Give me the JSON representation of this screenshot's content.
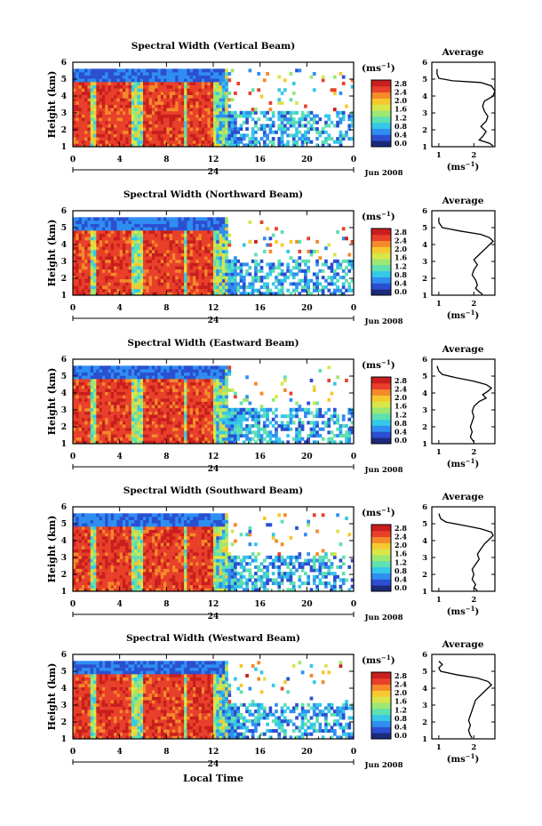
{
  "panels": [
    {
      "title": "Spectral Width (Vertical Beam)",
      "profile": [
        [
          5.6,
          0.95
        ],
        [
          5.3,
          0.95
        ],
        [
          5.05,
          1.0
        ],
        [
          4.9,
          1.4
        ],
        [
          4.8,
          2.2
        ],
        [
          4.6,
          2.5
        ],
        [
          4.3,
          2.6
        ],
        [
          4.0,
          2.55
        ],
        [
          3.7,
          2.3
        ],
        [
          3.4,
          2.25
        ],
        [
          3.1,
          2.3
        ],
        [
          2.8,
          2.4
        ],
        [
          2.5,
          2.35
        ],
        [
          2.2,
          2.2
        ],
        [
          1.9,
          2.35
        ],
        [
          1.6,
          2.25
        ],
        [
          1.4,
          2.15
        ],
        [
          1.2,
          2.45
        ],
        [
          1.05,
          2.55
        ]
      ]
    },
    {
      "title": "Spectral Width (Northward Beam)",
      "profile": [
        [
          5.6,
          1.0
        ],
        [
          5.3,
          1.0
        ],
        [
          5.0,
          1.1
        ],
        [
          4.8,
          1.6
        ],
        [
          4.6,
          2.2
        ],
        [
          4.4,
          2.45
        ],
        [
          4.2,
          2.55
        ],
        [
          4.0,
          2.45
        ],
        [
          3.7,
          2.3
        ],
        [
          3.4,
          2.15
        ],
        [
          3.1,
          2.0
        ],
        [
          2.8,
          2.1
        ],
        [
          2.5,
          2.0
        ],
        [
          2.2,
          1.95
        ],
        [
          1.9,
          2.05
        ],
        [
          1.6,
          2.1
        ],
        [
          1.4,
          2.05
        ],
        [
          1.2,
          2.15
        ],
        [
          1.05,
          2.25
        ]
      ]
    },
    {
      "title": "Spectral Width (Eastward Beam)",
      "profile": [
        [
          5.6,
          0.95
        ],
        [
          5.3,
          1.0
        ],
        [
          5.1,
          1.1
        ],
        [
          4.9,
          1.5
        ],
        [
          4.7,
          2.0
        ],
        [
          4.5,
          2.35
        ],
        [
          4.3,
          2.5
        ],
        [
          4.1,
          2.4
        ],
        [
          3.9,
          2.25
        ],
        [
          3.7,
          2.35
        ],
        [
          3.5,
          2.15
        ],
        [
          3.2,
          2.0
        ],
        [
          2.9,
          1.95
        ],
        [
          2.6,
          2.0
        ],
        [
          2.3,
          1.95
        ],
        [
          2.0,
          1.9
        ],
        [
          1.7,
          1.95
        ],
        [
          1.4,
          1.9
        ],
        [
          1.1,
          2.0
        ]
      ]
    },
    {
      "title": "Spectral Width (Southward Beam)",
      "profile": [
        [
          5.6,
          1.0
        ],
        [
          5.3,
          1.05
        ],
        [
          5.1,
          1.2
        ],
        [
          4.9,
          1.7
        ],
        [
          4.7,
          2.2
        ],
        [
          4.5,
          2.5
        ],
        [
          4.3,
          2.55
        ],
        [
          4.1,
          2.45
        ],
        [
          3.8,
          2.3
        ],
        [
          3.5,
          2.2
        ],
        [
          3.2,
          2.1
        ],
        [
          2.9,
          2.15
        ],
        [
          2.6,
          2.05
        ],
        [
          2.3,
          1.95
        ],
        [
          2.0,
          2.0
        ],
        [
          1.7,
          1.95
        ],
        [
          1.4,
          2.05
        ],
        [
          1.2,
          2.0
        ],
        [
          1.05,
          2.1
        ]
      ]
    },
    {
      "title": "Spectral Width (Westward Beam)",
      "profile": [
        [
          5.6,
          1.0
        ],
        [
          5.4,
          1.1
        ],
        [
          5.2,
          1.0
        ],
        [
          5.0,
          1.05
        ],
        [
          4.8,
          1.5
        ],
        [
          4.6,
          2.1
        ],
        [
          4.4,
          2.4
        ],
        [
          4.2,
          2.5
        ],
        [
          3.9,
          2.35
        ],
        [
          3.6,
          2.2
        ],
        [
          3.3,
          2.05
        ],
        [
          3.0,
          2.0
        ],
        [
          2.7,
          1.95
        ],
        [
          2.4,
          1.9
        ],
        [
          2.1,
          1.85
        ],
        [
          1.8,
          1.9
        ],
        [
          1.5,
          1.85
        ],
        [
          1.2,
          1.9
        ],
        [
          1.05,
          1.95
        ]
      ]
    }
  ],
  "ylabel": "Height (km)",
  "xlabel": "Local Time",
  "unit_label": "(ms",
  "unit_exp": "−1",
  "date_label": "Jun 2008",
  "day_label": "24",
  "avg_title": "Average",
  "colorbar_ticks": [
    "2.8",
    "2.4",
    "2.0",
    "1.6",
    "1.2",
    "0.8",
    "0.4",
    "0.0"
  ],
  "colorbar_colors": [
    "#1c2a7a",
    "#2b4fd0",
    "#2f8ef0",
    "#35c8e8",
    "#5fe0b0",
    "#9ce873",
    "#d8e64a",
    "#f6c830",
    "#f48a2a",
    "#e8402a",
    "#c81e1e"
  ],
  "chart_data": [
    {
      "type": "heatmap",
      "title": "Spectral Width (Vertical Beam)",
      "xlabel": "",
      "ylabel": "Height (km)",
      "x_ticks": [
        "0",
        "4",
        "8",
        "12",
        "16",
        "20",
        "0"
      ],
      "y_ticks": [
        "1",
        "2",
        "3",
        "4",
        "5",
        "6"
      ],
      "xlim": [
        0,
        24
      ],
      "ylim": [
        1,
        6
      ],
      "colorbar": {
        "label": "(ms−1)",
        "ticks": [
          "0.0",
          "0.4",
          "0.8",
          "1.2",
          "1.6",
          "2.0",
          "2.4",
          "2.8"
        ],
        "range": [
          0,
          2.8
        ]
      },
      "profile": {
        "title": "Average",
        "xlabel": "(ms−1)",
        "x_ticks": [
          "1",
          "2"
        ],
        "xlim": [
          0.8,
          2.6
        ],
        "y_ticks": [
          "1",
          "2",
          "3",
          "4",
          "5",
          "6"
        ]
      }
    },
    {
      "type": "heatmap",
      "title": "Spectral Width (Northward Beam)",
      "xlabel": "",
      "ylabel": "Height (km)",
      "x_ticks": [
        "0",
        "4",
        "8",
        "12",
        "16",
        "20",
        "0"
      ],
      "y_ticks": [
        "1",
        "2",
        "3",
        "4",
        "5",
        "6"
      ],
      "xlim": [
        0,
        24
      ],
      "ylim": [
        1,
        6
      ],
      "colorbar": {
        "label": "(ms−1)",
        "ticks": [
          "0.0",
          "0.4",
          "0.8",
          "1.2",
          "1.6",
          "2.0",
          "2.4",
          "2.8"
        ],
        "range": [
          0,
          2.8
        ]
      },
      "profile": {
        "title": "Average",
        "xlabel": "(ms−1)",
        "x_ticks": [
          "1",
          "2"
        ],
        "xlim": [
          0.8,
          2.6
        ],
        "y_ticks": [
          "1",
          "2",
          "3",
          "4",
          "5",
          "6"
        ]
      }
    },
    {
      "type": "heatmap",
      "title": "Spectral Width (Eastward Beam)",
      "xlabel": "",
      "ylabel": "Height (km)",
      "x_ticks": [
        "0",
        "4",
        "8",
        "12",
        "16",
        "20",
        "0"
      ],
      "y_ticks": [
        "1",
        "2",
        "3",
        "4",
        "5",
        "6"
      ],
      "xlim": [
        0,
        24
      ],
      "ylim": [
        1,
        6
      ],
      "colorbar": {
        "label": "(ms−1)",
        "ticks": [
          "0.0",
          "0.4",
          "0.8",
          "1.2",
          "1.6",
          "2.0",
          "2.4",
          "2.8"
        ],
        "range": [
          0,
          2.8
        ]
      },
      "profile": {
        "title": "Average",
        "xlabel": "(ms−1)",
        "x_ticks": [
          "1",
          "2"
        ],
        "xlim": [
          0.8,
          2.6
        ],
        "y_ticks": [
          "1",
          "2",
          "3",
          "4",
          "5",
          "6"
        ]
      }
    },
    {
      "type": "heatmap",
      "title": "Spectral Width (Southward Beam)",
      "xlabel": "",
      "ylabel": "Height (km)",
      "x_ticks": [
        "0",
        "4",
        "8",
        "12",
        "16",
        "20",
        "0"
      ],
      "y_ticks": [
        "1",
        "2",
        "3",
        "4",
        "5",
        "6"
      ],
      "xlim": [
        0,
        24
      ],
      "ylim": [
        1,
        6
      ],
      "colorbar": {
        "label": "(ms−1)",
        "ticks": [
          "0.0",
          "0.4",
          "0.8",
          "1.2",
          "1.6",
          "2.0",
          "2.4",
          "2.8"
        ],
        "range": [
          0,
          2.8
        ]
      },
      "profile": {
        "title": "Average",
        "xlabel": "(ms−1)",
        "x_ticks": [
          "1",
          "2"
        ],
        "xlim": [
          0.8,
          2.6
        ],
        "y_ticks": [
          "1",
          "2",
          "3",
          "4",
          "5",
          "6"
        ]
      }
    },
    {
      "type": "heatmap",
      "title": "Spectral Width (Westward Beam)",
      "xlabel": "Local Time",
      "ylabel": "Height (km)",
      "x_ticks": [
        "0",
        "4",
        "8",
        "12",
        "16",
        "20",
        "0"
      ],
      "y_ticks": [
        "1",
        "2",
        "3",
        "4",
        "5",
        "6"
      ],
      "xlim": [
        0,
        24
      ],
      "ylim": [
        1,
        6
      ],
      "colorbar": {
        "label": "(ms−1)",
        "ticks": [
          "0.0",
          "0.4",
          "0.8",
          "1.2",
          "1.6",
          "2.0",
          "2.4",
          "2.8"
        ],
        "range": [
          0,
          2.8
        ]
      },
      "profile": {
        "title": "Average",
        "xlabel": "(ms−1)",
        "x_ticks": [
          "1",
          "2"
        ],
        "xlim": [
          0.8,
          2.6
        ],
        "y_ticks": [
          "1",
          "2",
          "3",
          "4",
          "5",
          "6"
        ]
      }
    }
  ]
}
